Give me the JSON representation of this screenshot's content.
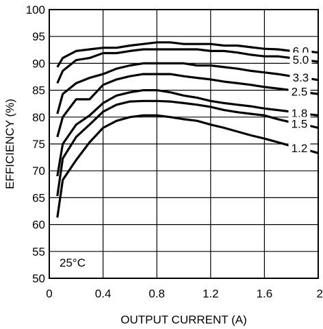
{
  "chart_data": {
    "type": "line",
    "title": "",
    "xlabel": "OUTPUT CURRENT (A)",
    "ylabel": "EFFICIENCY (%)",
    "xlim": [
      0,
      2
    ],
    "ylim": [
      50,
      100
    ],
    "x_ticks": [
      "0",
      "0.4",
      "0.8",
      "1.2",
      "1.6",
      "2"
    ],
    "y_ticks": [
      "50",
      "55",
      "60",
      "65",
      "70",
      "75",
      "80",
      "85",
      "90",
      "95",
      "100"
    ],
    "grid": true,
    "annotation": "25°C",
    "series": [
      {
        "name": "6.0",
        "x": [
          0.06,
          0.1,
          0.2,
          0.3,
          0.4,
          0.5,
          0.6,
          0.7,
          0.8,
          0.9,
          1.0,
          1.1,
          1.2,
          1.3,
          1.4,
          1.5,
          1.6,
          1.7,
          1.8,
          1.9,
          2.0
        ],
        "y": [
          89.3,
          91.0,
          92.3,
          92.6,
          92.9,
          92.9,
          93.3,
          93.6,
          93.9,
          93.9,
          93.6,
          93.6,
          93.6,
          93.3,
          93.3,
          93.0,
          92.7,
          92.6,
          92.3,
          92.3,
          92.0
        ]
      },
      {
        "name": "5.0",
        "x": [
          0.06,
          0.1,
          0.2,
          0.3,
          0.4,
          0.5,
          0.6,
          0.7,
          0.8,
          0.9,
          1.0,
          1.1,
          1.2,
          1.3,
          1.4,
          1.5,
          1.6,
          1.7,
          1.8,
          1.9,
          2.0
        ],
        "y": [
          86.3,
          88.6,
          90.6,
          91.0,
          91.9,
          91.9,
          92.3,
          92.6,
          92.6,
          92.6,
          92.6,
          92.6,
          92.3,
          92.3,
          92.0,
          91.6,
          91.3,
          91.3,
          91.0,
          90.6,
          90.3
        ]
      },
      {
        "name": "3.3",
        "x": [
          0.06,
          0.1,
          0.2,
          0.3,
          0.4,
          0.5,
          0.6,
          0.7,
          0.8,
          0.9,
          1.0,
          1.1,
          1.2,
          1.3,
          1.4,
          1.5,
          1.6,
          1.7,
          1.8,
          1.9,
          2.0
        ],
        "y": [
          80.6,
          84.3,
          86.3,
          87.3,
          88.0,
          89.0,
          89.6,
          90.0,
          90.0,
          90.0,
          90.0,
          89.6,
          89.6,
          89.3,
          89.0,
          88.6,
          88.3,
          88.0,
          87.6,
          87.3,
          86.9
        ]
      },
      {
        "name": "2.5",
        "x": [
          0.06,
          0.1,
          0.2,
          0.3,
          0.4,
          0.5,
          0.6,
          0.7,
          0.8,
          0.9,
          1.0,
          1.1,
          1.2,
          1.3,
          1.4,
          1.5,
          1.6,
          1.7,
          1.8,
          1.9,
          2.0
        ],
        "y": [
          76.3,
          80.0,
          83.3,
          83.3,
          86.0,
          87.0,
          87.6,
          88.0,
          88.0,
          88.0,
          87.6,
          87.3,
          87.0,
          86.6,
          86.3,
          86.0,
          85.6,
          85.3,
          85.0,
          84.6,
          84.3
        ]
      },
      {
        "name": "1.8",
        "x": [
          0.06,
          0.1,
          0.2,
          0.3,
          0.4,
          0.5,
          0.6,
          0.7,
          0.8,
          0.9,
          1.0,
          1.1,
          1.2,
          1.3,
          1.4,
          1.5,
          1.6,
          1.7,
          1.8,
          1.9,
          2.0
        ],
        "y": [
          69.0,
          75.0,
          78.6,
          80.3,
          82.6,
          84.0,
          84.6,
          85.0,
          85.0,
          84.6,
          84.0,
          83.6,
          83.0,
          82.6,
          82.3,
          82.0,
          81.6,
          81.3,
          81.0,
          80.6,
          80.3
        ]
      },
      {
        "name": "1.5",
        "x": [
          0.06,
          0.1,
          0.2,
          0.3,
          0.4,
          0.5,
          0.6,
          0.7,
          0.8,
          0.9,
          1.0,
          1.1,
          1.2,
          1.3,
          1.4,
          1.5,
          1.6,
          1.7,
          1.8,
          1.9,
          2.0
        ],
        "y": [
          65.3,
          72.3,
          76.3,
          78.6,
          81.0,
          82.3,
          82.9,
          83.0,
          83.0,
          82.9,
          82.6,
          82.3,
          81.9,
          81.3,
          80.9,
          80.6,
          80.3,
          79.6,
          79.0,
          78.6,
          78.0
        ]
      },
      {
        "name": "1.2",
        "x": [
          0.06,
          0.1,
          0.2,
          0.3,
          0.4,
          0.5,
          0.6,
          0.7,
          0.8,
          0.9,
          1.0,
          1.1,
          1.2,
          1.3,
          1.4,
          1.5,
          1.6,
          1.7,
          1.8,
          1.9,
          2.0
        ],
        "y": [
          61.3,
          68.3,
          72.0,
          75.3,
          78.0,
          79.3,
          80.0,
          80.3,
          80.3,
          80.0,
          79.6,
          79.3,
          78.6,
          78.0,
          77.3,
          76.6,
          76.0,
          75.3,
          74.6,
          74.0,
          73.3
        ]
      }
    ]
  }
}
